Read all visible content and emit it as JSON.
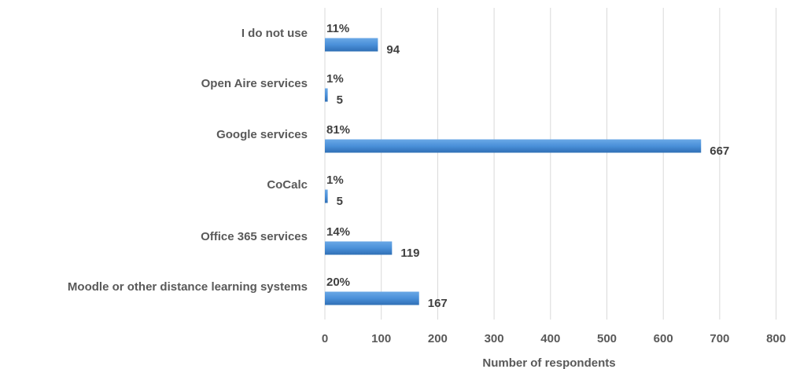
{
  "colors": {
    "bar": "#4a90d9",
    "bar_dark": "#2f6fb5",
    "grid": "#d9d9d9",
    "text": "#595959"
  },
  "chart_data": {
    "type": "bar",
    "orientation": "horizontal",
    "categories": [
      "I do not use",
      "Open Aire services",
      "Google services",
      "CoCalc",
      "Office 365 services",
      "Moodle or other distance learning systems"
    ],
    "values": [
      94,
      5,
      667,
      5,
      119,
      167
    ],
    "percent_labels": [
      "11%",
      "1%",
      "81%",
      "1%",
      "14%",
      "20%"
    ],
    "value_labels": [
      "94",
      "5",
      "667",
      "5",
      "119",
      "167"
    ],
    "xlabel": "Number of respondents",
    "ylabel": "",
    "xlim": [
      0,
      800
    ],
    "xticks": [
      0,
      100,
      200,
      300,
      400,
      500,
      600,
      700,
      800
    ],
    "xtick_labels": [
      "0",
      "100",
      "200",
      "300",
      "400",
      "500",
      "600",
      "700",
      "800"
    ],
    "grid": true,
    "legend": "none"
  }
}
